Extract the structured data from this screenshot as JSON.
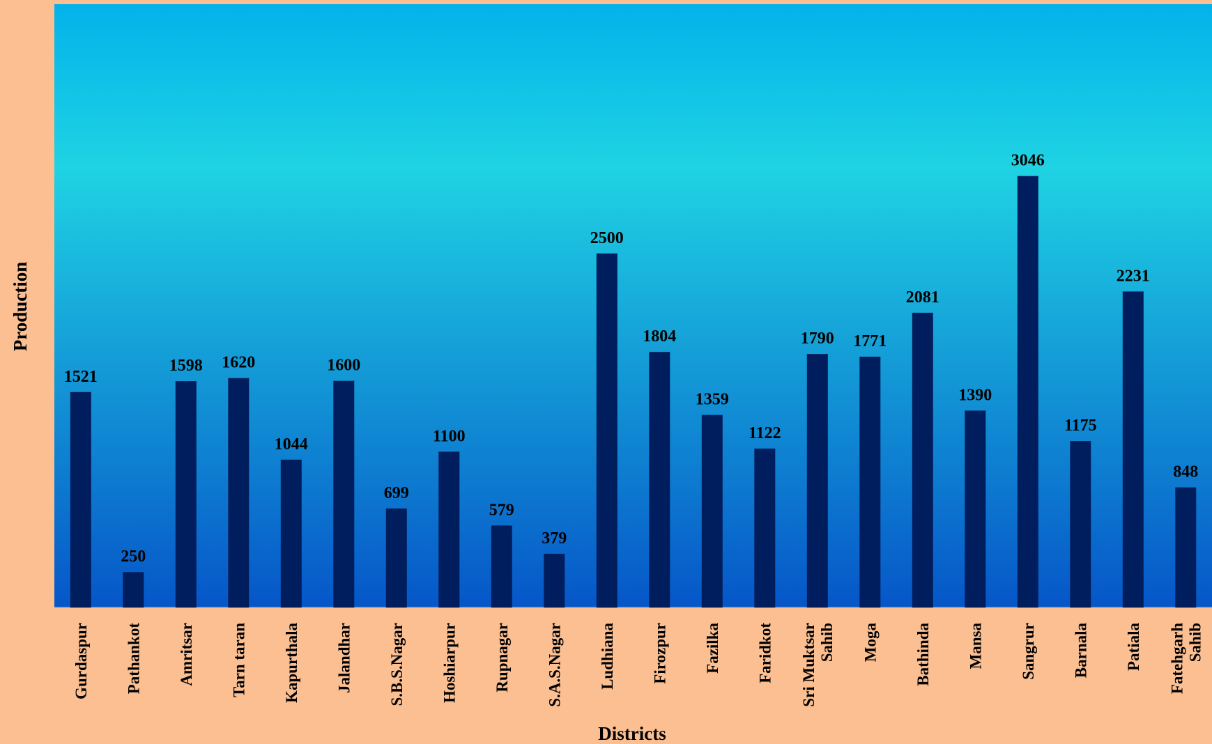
{
  "chart_data": {
    "type": "bar",
    "title": "",
    "xlabel": "Districts",
    "ylabel": "Production",
    "categories": [
      "Gurdaspur",
      "Pathankot",
      "Amritsar",
      "Tarn taran",
      "Kapurthala",
      "Jalandhar",
      "S.B.S.Nagar",
      "Hoshiarpur",
      "Rupnagar",
      "S.A.S.Nagar",
      "Ludhiana",
      "Firozpur",
      "Fazilka",
      "Faridkot",
      "Sri Muktsar Sahib",
      "Moga",
      "Bathinda",
      "Mansa",
      "Sangrur",
      "Barnala",
      "Patiala",
      "Fatehgarh Sahib"
    ],
    "values": [
      1521,
      250,
      1598,
      1620,
      1044,
      1600,
      699,
      1100,
      579,
      379,
      2500,
      1804,
      1359,
      1122,
      1790,
      1771,
      2081,
      1390,
      3046,
      1175,
      2231,
      848
    ],
    "ylim": [
      0,
      3500
    ],
    "grid": false,
    "legend": "none",
    "colors": {
      "bar": "#001e5e",
      "plot_top": "#03b2ea",
      "plot_mid": "#1fd3e3",
      "plot_bottom": "#0656c8",
      "page_background": "#fbbf92"
    }
  }
}
